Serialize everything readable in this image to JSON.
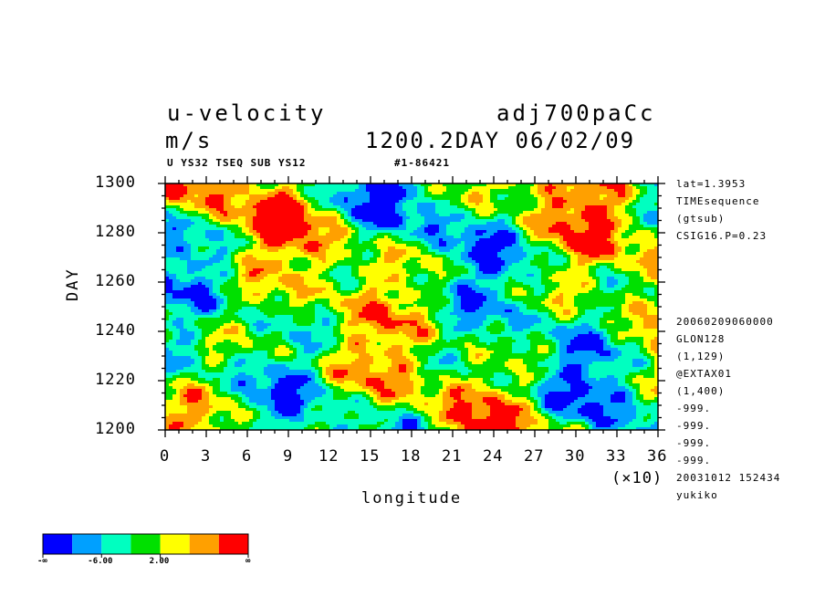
{
  "header": {
    "title_left": "u-velocity",
    "title_right": "adj700paCc",
    "units": "m/s",
    "time_info": "1200.2DAY 06/02/09",
    "sub_left": "U YS32 TSEQ SUB YS12",
    "sub_right": "#1-86421"
  },
  "side_info": {
    "top": [
      "lat=1.3953",
      "TIMEsequence",
      "(gtsub)",
      "CSIG16.P=0.23"
    ],
    "bottom": [
      "20060209060000",
      "GLON128",
      "(1,129)",
      "@EXTAX01",
      "(1,400)",
      "-999.",
      "-999.",
      "-999.",
      "-999.",
      "20031012 152434",
      "yukiko"
    ]
  },
  "chart_data": {
    "type": "heatmap",
    "xlabel": "longitude",
    "ylabel": "DAY",
    "x_multiplier": "(×10)",
    "x_ticks": [
      "0",
      "3",
      "6",
      "9",
      "12",
      "15",
      "18",
      "21",
      "24",
      "27",
      "30",
      "33",
      "36"
    ],
    "y_ticks": [
      "1200",
      "1220",
      "1240",
      "1260",
      "1280",
      "1300"
    ],
    "xlim": [
      0,
      36
    ],
    "ylim": [
      1200,
      1300
    ],
    "colorbar": {
      "colors": [
        "#0000ff",
        "#00a0ff",
        "#00ffc0",
        "#00e000",
        "#ffff00",
        "#ffa000",
        "#ff0000"
      ],
      "labels": [
        "-∞",
        "-6.00",
        "2.00",
        "∞"
      ]
    }
  }
}
